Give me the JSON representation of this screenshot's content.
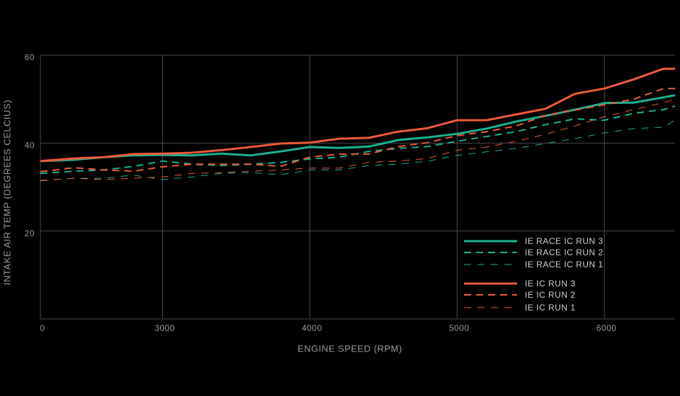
{
  "chart_data": {
    "type": "line",
    "xlabel": "ENGINE SPEED (RPM)",
    "ylabel": "INTAKE AIR TEMP (DEGREES CELCIUS)",
    "x": [
      2170,
      2400,
      2600,
      2800,
      3000,
      3200,
      3400,
      3600,
      3800,
      4000,
      4200,
      4400,
      4600,
      4800,
      5000,
      5200,
      5400,
      5600,
      5800,
      6000,
      6200,
      6400,
      6480
    ],
    "xlim": [
      2170,
      6480
    ],
    "xticks": [
      {
        "value": 2170,
        "label": "0"
      },
      3000,
      4000,
      5000,
      6000
    ],
    "ylim": [
      0,
      60
    ],
    "yticks": [
      20,
      40,
      60
    ],
    "grid": true,
    "legend": "lower right",
    "series": [
      {
        "name": "IE RACE IC RUN 3",
        "color": "#1bb190",
        "dash": "solid",
        "values": [
          35.9,
          36.2,
          36.8,
          37.2,
          37.3,
          37.2,
          37.6,
          37.2,
          38.1,
          39.1,
          38.9,
          39.2,
          40.7,
          41.3,
          42.1,
          43.3,
          44.9,
          46.2,
          47.6,
          49.1,
          49.2,
          50.4,
          50.9
        ]
      },
      {
        "name": "IE RACE IC RUN 2",
        "color": "#1bb190",
        "dash": "dashed",
        "values": [
          33.1,
          33.6,
          33.9,
          34.7,
          35.9,
          35.2,
          34.9,
          35.2,
          35.6,
          36.4,
          36.8,
          38.1,
          38.8,
          39.2,
          40.4,
          41.5,
          42.6,
          44.2,
          45.5,
          45.2,
          46.8,
          47.6,
          48.4
        ]
      },
      {
        "name": "IE RACE IC RUN 1",
        "color": "#1bb190",
        "dash": "thin",
        "values": [
          31.4,
          32.0,
          32.0,
          32.7,
          31.7,
          32.3,
          33.1,
          33.3,
          32.8,
          33.9,
          33.9,
          34.9,
          35.2,
          35.9,
          37.2,
          38.0,
          38.8,
          39.9,
          41.0,
          42.3,
          43.3,
          43.6,
          45.2
        ]
      },
      {
        "name": "IE IC RUN 3",
        "color": "#ee5a3a",
        "dash": "solid",
        "values": [
          35.9,
          36.5,
          36.8,
          37.5,
          37.6,
          37.8,
          38.4,
          39.1,
          39.9,
          40.1,
          41.0,
          41.2,
          42.6,
          43.4,
          45.2,
          45.2,
          46.5,
          47.8,
          51.2,
          52.4,
          54.5,
          56.9,
          56.9
        ]
      },
      {
        "name": "IE IC RUN 2",
        "color": "#ee5a3a",
        "dash": "dashed",
        "values": [
          33.5,
          34.4,
          33.9,
          33.6,
          34.6,
          35.2,
          35.2,
          35.2,
          34.7,
          36.8,
          37.5,
          37.5,
          39.2,
          40.1,
          41.7,
          42.6,
          43.9,
          46.3,
          47.5,
          48.7,
          50.0,
          52.4,
          52.4
        ]
      },
      {
        "name": "IE IC RUN 1",
        "color": "#ee5a3a",
        "dash": "thin",
        "values": [
          31.5,
          32.0,
          31.7,
          32.0,
          32.3,
          33.1,
          33.3,
          33.6,
          33.9,
          34.3,
          34.3,
          35.6,
          35.9,
          36.5,
          38.4,
          39.1,
          40.4,
          42.0,
          43.9,
          46.0,
          47.6,
          49.2,
          50.0
        ]
      }
    ]
  }
}
